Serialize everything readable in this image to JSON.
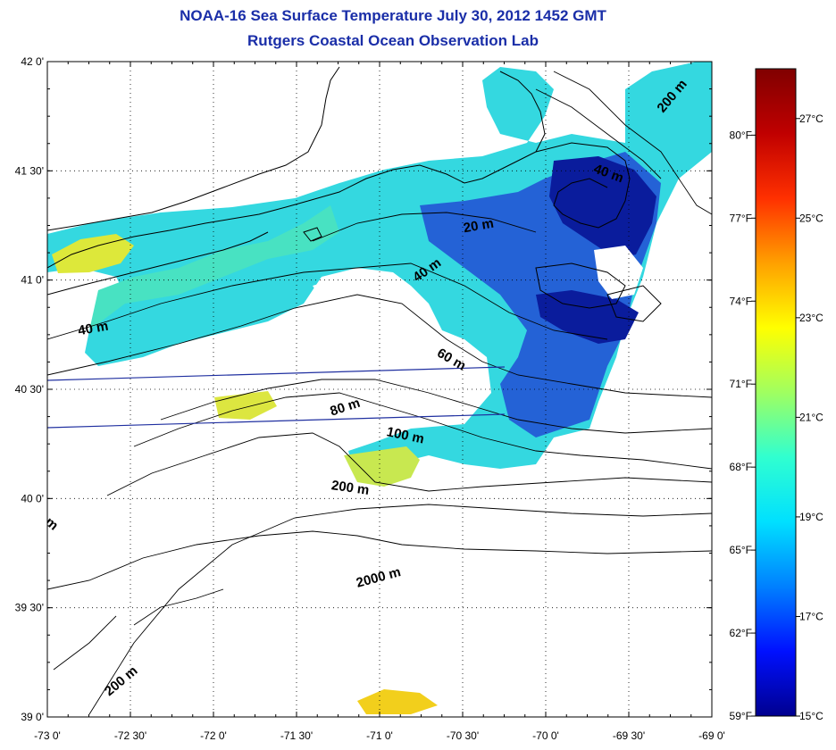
{
  "title": {
    "line1": "NOAA-16 Sea Surface Temperature July 30, 2012 1452 GMT",
    "line2": "Rutgers Coastal Ocean Observation Lab"
  },
  "map": {
    "lon_ticks": [
      "-73 0'",
      "-72 30'",
      "-72 0'",
      "-71 30'",
      "-71 0'",
      "-70 30'",
      "-70 0'",
      "-69 30'",
      "-69 0'"
    ],
    "lat_ticks": [
      "42 0'",
      "41 30'",
      "41 0'",
      "40 30'",
      "40 0'",
      "39 30'",
      "39 0'"
    ],
    "lon_range": [
      -73.0,
      -69.0
    ],
    "lat_range": [
      39.0,
      42.0
    ],
    "grid": "dotted",
    "contours": [
      {
        "label": "200 m",
        "lon": -69.22,
        "lat": 41.83,
        "angle": -50
      },
      {
        "label": "40 m",
        "lon": -69.63,
        "lat": 41.47,
        "angle": 20
      },
      {
        "label": "20 m",
        "lon": -70.4,
        "lat": 41.23,
        "angle": -10
      },
      {
        "label": "40 m",
        "lon": -70.7,
        "lat": 41.03,
        "angle": -35
      },
      {
        "label": "40 m",
        "lon": -72.72,
        "lat": 40.76,
        "angle": -10
      },
      {
        "label": "60 m",
        "lon": -70.58,
        "lat": 40.62,
        "angle": 30
      },
      {
        "label": "80 m",
        "lon": -71.2,
        "lat": 40.4,
        "angle": -18
      },
      {
        "label": "100 m",
        "lon": -70.85,
        "lat": 40.27,
        "angle": 12
      },
      {
        "label": "200 m",
        "lon": -71.18,
        "lat": 40.03,
        "angle": 8
      },
      {
        "label": "2000 m",
        "lon": -71.0,
        "lat": 39.62,
        "angle": -15
      },
      {
        "label": "200 m",
        "lon": -72.54,
        "lat": 39.15,
        "angle": -40
      },
      {
        "label": "m",
        "lon": -72.99,
        "lat": 39.87,
        "angle": 40
      }
    ],
    "palette": {
      "cold": "#0a1a9a",
      "blue": "#1f5fd8",
      "cyan": "#2fd6e6",
      "aqua": "#3fe0c8",
      "green": "#7ee87c",
      "yellow": "#e6e830",
      "gold": "#f2d11c"
    }
  },
  "colorbar": {
    "celsius_labels": [
      "27°C",
      "25°C",
      "23°C",
      "21°C",
      "19°C",
      "17°C",
      "15°C"
    ],
    "fahrenheit_labels": [
      "80°F",
      "77°F",
      "74°F",
      "71°F",
      "68°F",
      "65°F",
      "62°F",
      "59°F"
    ],
    "c_range": [
      15,
      28
    ],
    "stops": [
      "#00008f",
      "#0010ff",
      "#0080ff",
      "#00e0ff",
      "#30ffd0",
      "#a0ff60",
      "#ffff00",
      "#ffa000",
      "#ff3000",
      "#c00000",
      "#800000"
    ]
  }
}
